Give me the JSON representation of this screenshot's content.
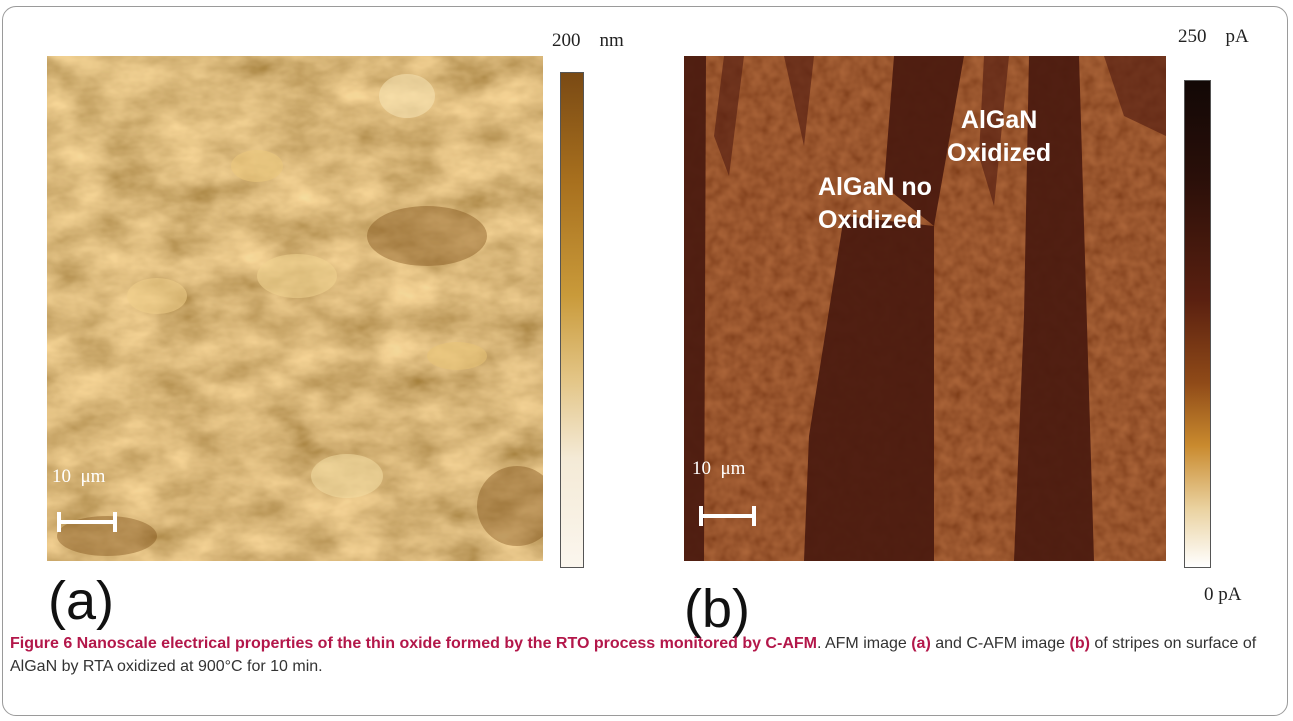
{
  "panel_a": {
    "letter": "(a)",
    "colorbar_max_value": "200",
    "colorbar_max_unit": "nm",
    "scale_bar_label": "10",
    "scale_bar_unit": "μm",
    "colorbar_gradient": [
      "#7a4a14",
      "#a8701e",
      "#c99a3a",
      "#e3c586",
      "#f4ead6",
      "#fbf6ee"
    ]
  },
  "panel_b": {
    "letter": "(b)",
    "colorbar_max_value": "250",
    "colorbar_max_unit": "pA",
    "colorbar_min_value": "0",
    "colorbar_min_unit": "pA",
    "scale_bar_label": "10",
    "scale_bar_unit": "μm",
    "annotation_oxidized_line1": "AlGaN",
    "annotation_oxidized_line2": "Oxidized",
    "annotation_no_oxidized_line1": "AlGaN no",
    "annotation_no_oxidized_line2": "Oxidized",
    "colorbar_gradient": [
      "#120806",
      "#2a0f09",
      "#5a2010",
      "#8f4a18",
      "#c98a2e",
      "#ead2a0",
      "#ffffff"
    ]
  },
  "caption": {
    "title": "Figure 6 Nanoscale electrical properties of the thin oxide formed by the RTO process monitored by C-AFM",
    "text_1": ". AFM image ",
    "ref_a": "(a)",
    "text_2": " and C-AFM image ",
    "ref_b": "(b)",
    "text_3": " of stripes on surface of AlGaN by RTA oxidized at 900°C for 10 min."
  }
}
